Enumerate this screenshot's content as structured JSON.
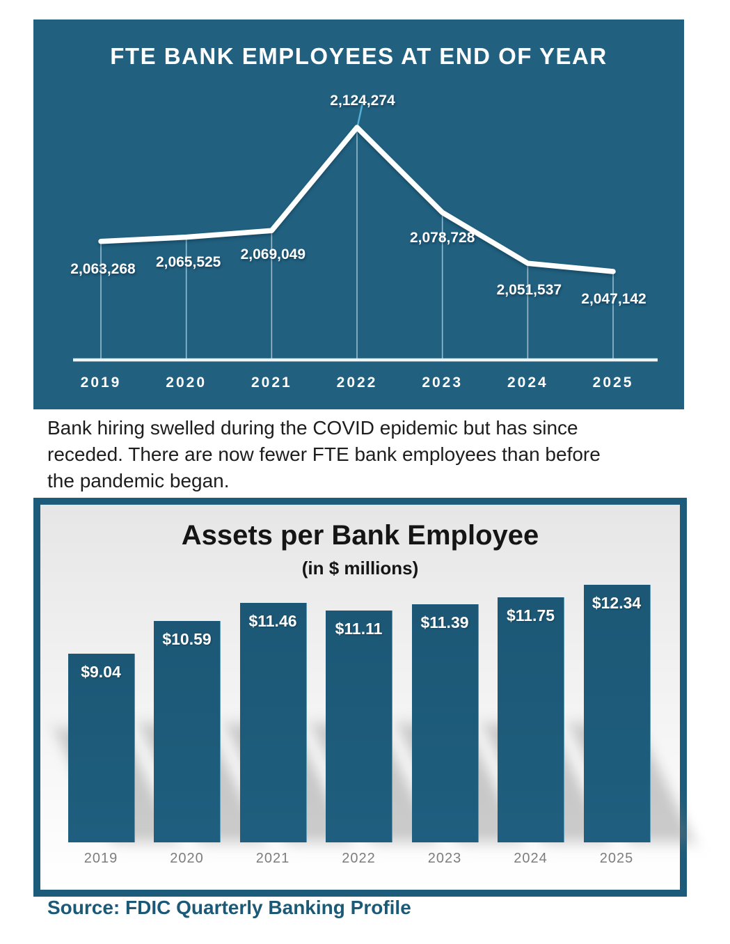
{
  "chart_data": [
    {
      "type": "line",
      "title": "FTE BANK EMPLOYEES AT END OF YEAR",
      "categories": [
        "2019",
        "2020",
        "2021",
        "2022",
        "2023",
        "2024",
        "2025"
      ],
      "values": [
        2063268,
        2065525,
        2069049,
        2124274,
        2078728,
        2051537,
        2047142
      ],
      "value_labels": [
        "2,063,268",
        "2,065,525",
        "2,069,049",
        "2,124,274",
        "2,078,728",
        "2,051,537",
        "2,047,142"
      ],
      "xlabel": "",
      "ylabel": "",
      "ylim": [
        2043000,
        2130000
      ],
      "grid": false,
      "legend": "none",
      "colors": {
        "background": "#21607F",
        "line": "#FFFFFF",
        "labels": "#FFFFFF",
        "axis": "#EDF3F7",
        "drop_line": "#AECDE0",
        "leader_line": "#55AFD8"
      }
    },
    {
      "type": "bar",
      "title": "Assets per Bank Employee",
      "subtitle": "(in $ millions)",
      "categories": [
        "2019",
        "2020",
        "2021",
        "2022",
        "2023",
        "2024",
        "2025"
      ],
      "values": [
        9.04,
        10.59,
        11.46,
        11.11,
        11.39,
        11.75,
        12.34
      ],
      "value_labels": [
        "$9.04",
        "$10.59",
        "$11.46",
        "$11.11",
        "$11.39",
        "$11.75",
        "$12.34"
      ],
      "xlabel": "",
      "ylabel": "",
      "ylim": [
        0,
        13
      ],
      "grid": false,
      "legend": "none",
      "colors": {
        "frame": "#1D5B7B",
        "bar": "#1E5C7B",
        "value_label": "#FFFFFF",
        "year_label": "#7D7D7D",
        "title": "#151515"
      }
    }
  ],
  "caption": {
    "text": "Bank hiring swelled during the COVID epidemic but has since\nreceded. There are now fewer FTE bank employees than before\nthe pandemic began."
  },
  "source": {
    "text": "Source: FDIC Quarterly Banking Profile"
  }
}
